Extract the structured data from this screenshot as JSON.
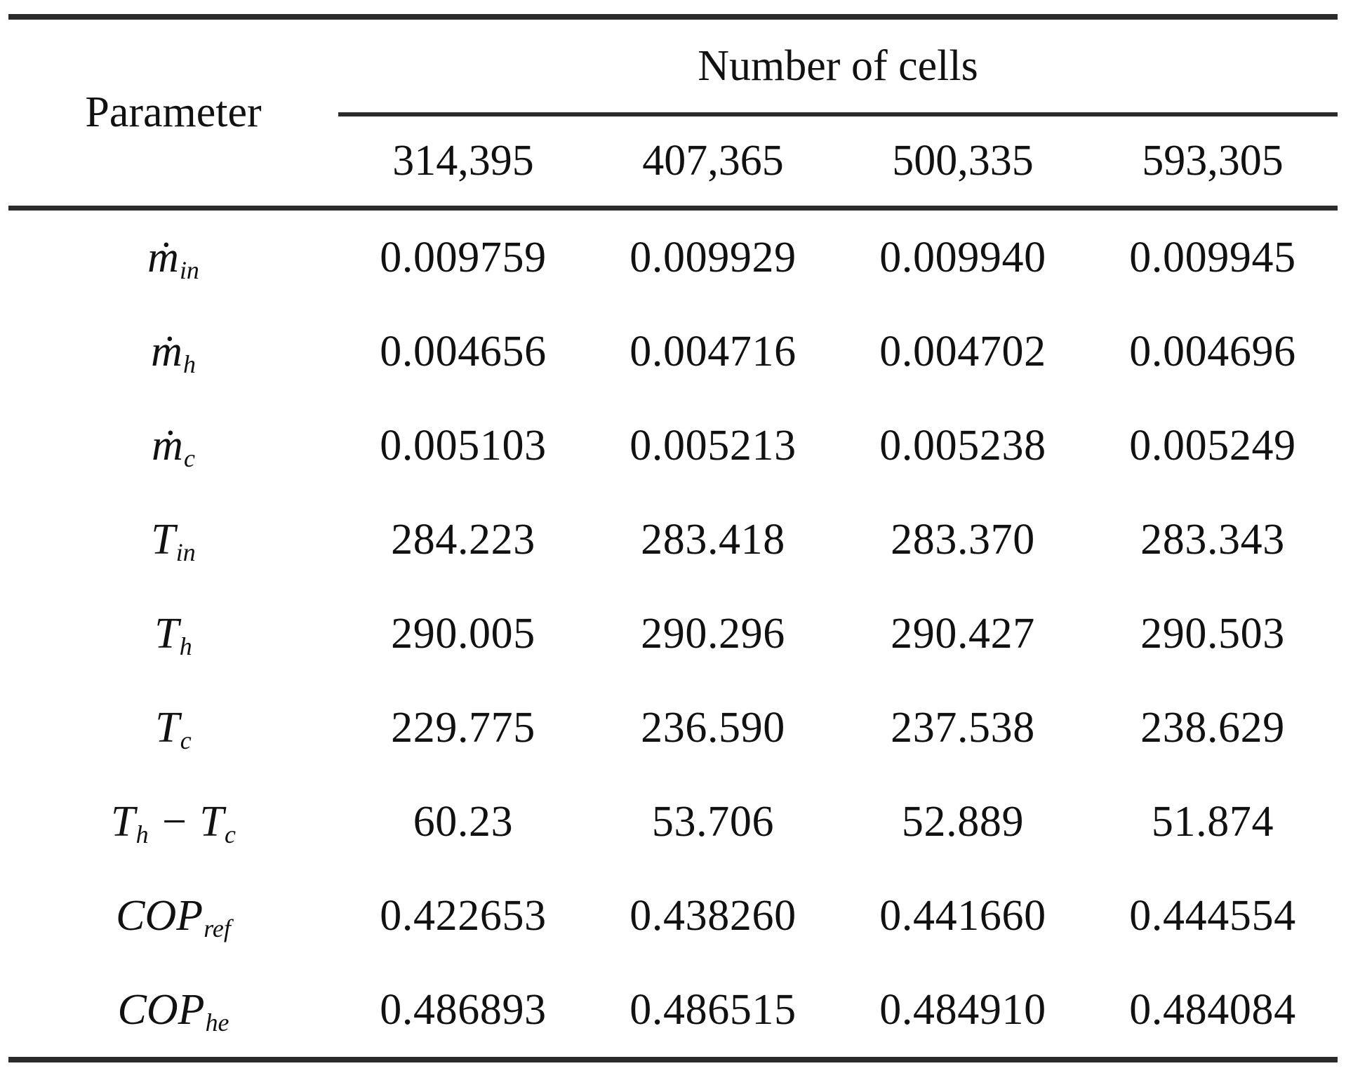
{
  "table": {
    "param_header": "Parameter",
    "group_header": "Number of cells",
    "columns": [
      "314,395",
      "407,365",
      "500,335",
      "593,305"
    ],
    "rows": [
      {
        "param": [
          {
            "base": "ṁ",
            "sub": "in"
          }
        ],
        "values": [
          "0.009759",
          "0.009929",
          "0.009940",
          "0.009945"
        ]
      },
      {
        "param": [
          {
            "base": "ṁ",
            "sub": "h"
          }
        ],
        "values": [
          "0.004656",
          "0.004716",
          "0.004702",
          "0.004696"
        ]
      },
      {
        "param": [
          {
            "base": "ṁ",
            "sub": "c"
          }
        ],
        "values": [
          "0.005103",
          "0.005213",
          "0.005238",
          "0.005249"
        ]
      },
      {
        "param": [
          {
            "base": "T",
            "sub": "in"
          }
        ],
        "values": [
          "284.223",
          "283.418",
          "283.370",
          "283.343"
        ]
      },
      {
        "param": [
          {
            "base": "T",
            "sub": "h"
          }
        ],
        "values": [
          "290.005",
          "290.296",
          "290.427",
          "290.503"
        ]
      },
      {
        "param": [
          {
            "base": "T",
            "sub": "c"
          }
        ],
        "values": [
          "229.775",
          "236.590",
          "237.538",
          "238.629"
        ]
      },
      {
        "param": [
          {
            "base": "T",
            "sub": "h"
          },
          {
            "base": " − "
          },
          {
            "base": "T",
            "sub": "c"
          }
        ],
        "values": [
          "60.23",
          "53.706",
          "52.889",
          "51.874"
        ]
      },
      {
        "param": [
          {
            "base": "COP",
            "sub": "ref"
          }
        ],
        "values": [
          "0.422653",
          "0.438260",
          "0.441660",
          "0.444554"
        ]
      },
      {
        "param": [
          {
            "base": "COP",
            "sub": "he"
          }
        ],
        "values": [
          "0.486893",
          "0.486515",
          "0.484910",
          "0.484084"
        ]
      }
    ],
    "line_color": "#2b2b2b",
    "text_color": "#111111"
  }
}
